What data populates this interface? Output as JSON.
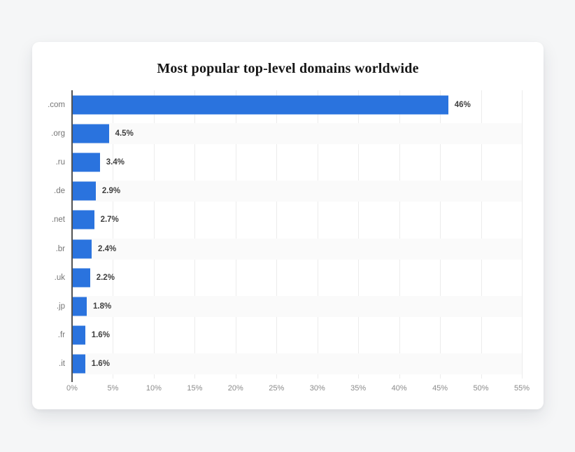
{
  "page": {
    "background_color": "#f5f6f7"
  },
  "card": {
    "background_color": "#ffffff"
  },
  "chart_data": {
    "type": "bar",
    "orientation": "horizontal",
    "title": "Most popular top-level domains worldwide",
    "categories": [
      ".com",
      ".org",
      ".ru",
      ".de",
      ".net",
      ".br",
      ".uk",
      ".jp",
      ".fr",
      ".it"
    ],
    "values": [
      46,
      4.5,
      3.4,
      2.9,
      2.7,
      2.4,
      2.2,
      1.8,
      1.6,
      1.6
    ],
    "value_labels": [
      "46%",
      "4.5%",
      "3.4%",
      "2.9%",
      "2.7%",
      "2.4%",
      "2.2%",
      "1.8%",
      "1.6%",
      "1.6%"
    ],
    "x_ticks": [
      "0%",
      "5%",
      "10%",
      "15%",
      "20%",
      "25%",
      "30%",
      "35%",
      "40%",
      "45%",
      "50%",
      "55%"
    ],
    "xlim": [
      0,
      55
    ],
    "grid": true,
    "legend": "none",
    "zebra_striping": "odd rows shaded",
    "bar_color": "#2a73de",
    "stripe_color": "#fafafa",
    "gridline_color": "#ececec",
    "axis_line_color": "#525252",
    "value_label_color": "#3f3f3f",
    "category_label_color": "#757575",
    "tick_label_color": "#8b8b8b"
  }
}
